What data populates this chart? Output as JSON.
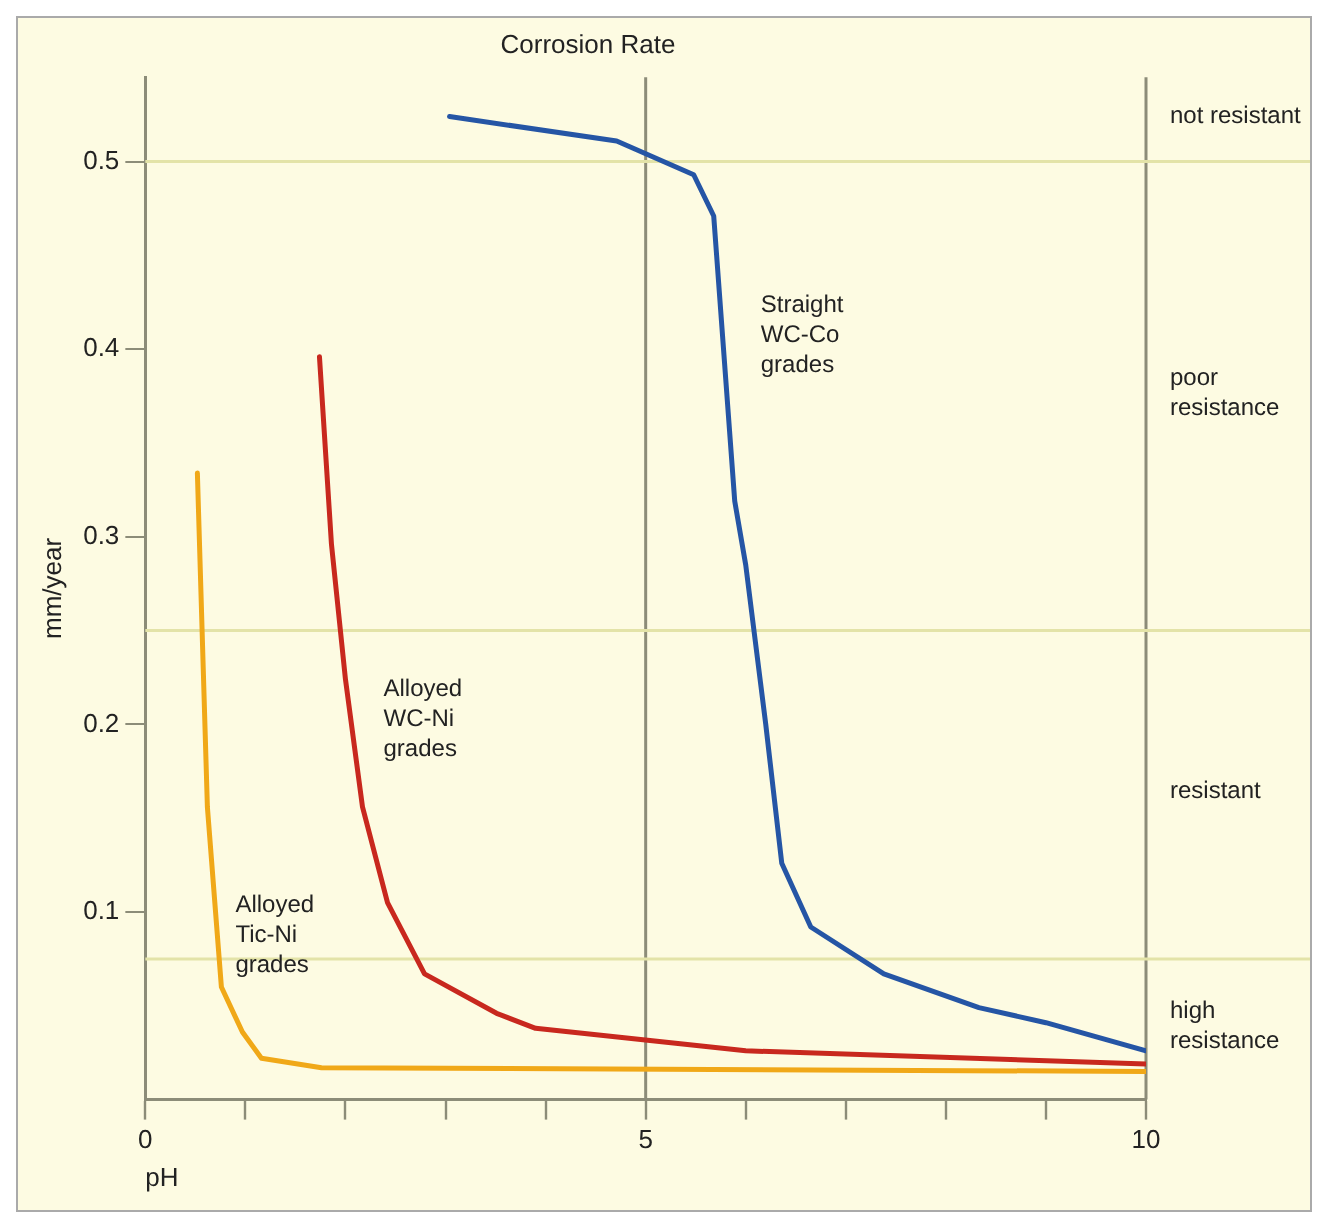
{
  "chart_data": {
    "type": "line",
    "title": "Corrosion Rate",
    "xlabel": "pH",
    "ylabel": "mm/year",
    "xlim": [
      0,
      10
    ],
    "ylim": [
      0,
      0.545
    ],
    "xticks": [
      0,
      {
        "value": 1,
        "label": null
      },
      {
        "value": 2,
        "label": null
      },
      {
        "value": 3,
        "label": null
      },
      {
        "value": 4,
        "label": null
      },
      5,
      {
        "value": 6,
        "label": null
      },
      {
        "value": 7,
        "label": null
      },
      {
        "value": 8,
        "label": null
      },
      {
        "value": 9,
        "label": null
      },
      10
    ],
    "yticks": [
      0.1,
      0.2,
      0.3,
      0.4,
      0.5
    ],
    "marker": "none",
    "line_style": "solid",
    "series": [
      {
        "name": "Straight WC-Co grades",
        "color": "#2555a5",
        "x": [
          3.04,
          4.71,
          5.48,
          5.68,
          5.89,
          6.0,
          6.2,
          6.36,
          6.65,
          7.38,
          8.33,
          9.0,
          10
        ],
        "values": [
          0.524,
          0.511,
          0.493,
          0.471,
          0.319,
          0.285,
          0.2,
          0.126,
          0.092,
          0.067,
          0.049,
          0.041,
          0.026
        ]
      },
      {
        "name": "Alloyed WC-Ni grades",
        "color": "#c8281e",
        "x": [
          1.74,
          1.86,
          2.0,
          2.17,
          2.42,
          2.79,
          3.51,
          3.9,
          6.0,
          10
        ],
        "values": [
          0.396,
          0.296,
          0.224,
          0.156,
          0.105,
          0.067,
          0.046,
          0.038,
          0.026,
          0.019
        ]
      },
      {
        "name": "Alloyed Tic-Ni grades",
        "color": "#f0a818",
        "x": [
          0.52,
          0.62,
          0.76,
          0.97,
          1.16,
          1.76,
          10
        ],
        "values": [
          0.334,
          0.156,
          0.06,
          0.036,
          0.022,
          0.017,
          0.015
        ]
      }
    ],
    "ref_lines": [
      {
        "axis": "x",
        "value": 5,
        "color": "#8c8c78"
      },
      {
        "axis": "x",
        "value": 10,
        "color": "#8c8c78"
      },
      {
        "axis": "y",
        "value": 0.5,
        "color": "#e3e3a8"
      },
      {
        "axis": "y",
        "value": 0.25,
        "color": "#e3e3a8"
      },
      {
        "axis": "y",
        "value": 0.075,
        "color": "#e3e3a8"
      }
    ],
    "annotations": [
      "not resistant",
      "poor resistance",
      "resistant",
      "high resistance"
    ]
  }
}
